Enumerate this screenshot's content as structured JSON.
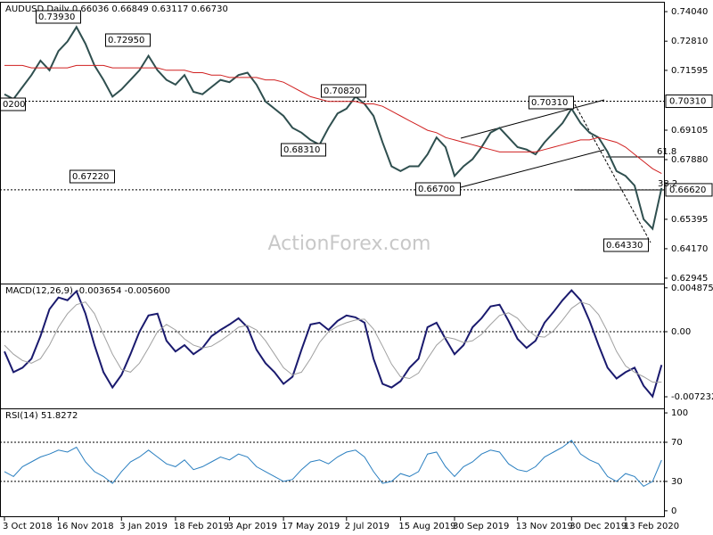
{
  "chart_data": [
    {
      "type": "line",
      "title": "AUDUSD Daily 0.66036 0.66849 0.63117 0.66730",
      "watermark": "ActionForex.com",
      "categories": [
        "3 Oct 2018",
        null,
        null,
        null,
        null,
        null,
        "16 Nov 2018",
        null,
        null,
        null,
        null,
        null,
        null,
        "3 Jan 2019",
        null,
        null,
        null,
        null,
        null,
        "18 Feb 2019",
        null,
        null,
        null,
        null,
        null,
        "3 Apr 2019",
        null,
        null,
        null,
        null,
        null,
        "17 May 2019",
        null,
        null,
        null,
        null,
        null,
        null,
        "2 Jul 2019",
        null,
        null,
        null,
        null,
        null,
        "15 Aug 2019",
        null,
        null,
        null,
        null,
        null,
        "30 Sep 2019",
        null,
        null,
        null,
        null,
        null,
        null,
        "13 Nov 2019",
        null,
        null,
        null,
        null,
        null,
        "30 Dec 2019",
        null,
        null,
        null,
        null,
        null,
        "13 Feb 2020",
        null,
        null,
        null,
        null
      ],
      "series": [
        {
          "name": "AUDUSD",
          "color": "#2f4f4f",
          "values": [
            0.706,
            0.704,
            0.709,
            0.714,
            0.72,
            0.716,
            0.724,
            0.728,
            0.734,
            0.727,
            0.718,
            0.712,
            0.705,
            0.708,
            0.712,
            0.716,
            0.722,
            0.716,
            0.712,
            0.71,
            0.714,
            0.707,
            0.706,
            0.709,
            0.712,
            0.711,
            0.714,
            0.715,
            0.71,
            0.703,
            0.7,
            0.697,
            0.692,
            0.69,
            0.687,
            0.685,
            0.692,
            0.698,
            0.7,
            0.705,
            0.702,
            0.697,
            0.686,
            0.676,
            0.674,
            0.676,
            0.676,
            0.681,
            0.688,
            0.684,
            0.672,
            0.676,
            0.679,
            0.684,
            0.69,
            0.692,
            0.688,
            0.684,
            0.683,
            0.681,
            0.686,
            0.69,
            0.694,
            0.7,
            0.694,
            0.69,
            0.688,
            0.682,
            0.674,
            0.672,
            0.668,
            0.654,
            0.65,
            0.667
          ]
        },
        {
          "name": "MA",
          "color": "#d02020",
          "values": [
            0.718,
            0.718,
            0.718,
            0.717,
            0.717,
            0.717,
            0.717,
            0.717,
            0.718,
            0.718,
            0.718,
            0.718,
            0.717,
            0.717,
            0.717,
            0.717,
            0.717,
            0.717,
            0.716,
            0.716,
            0.716,
            0.715,
            0.715,
            0.714,
            0.714,
            0.713,
            0.713,
            0.713,
            0.713,
            0.712,
            0.712,
            0.711,
            0.709,
            0.707,
            0.705,
            0.704,
            0.703,
            0.703,
            0.703,
            0.703,
            0.702,
            0.702,
            0.701,
            0.699,
            0.697,
            0.695,
            0.693,
            0.691,
            0.69,
            0.688,
            0.687,
            0.686,
            0.685,
            0.684,
            0.683,
            0.682,
            0.682,
            0.682,
            0.682,
            0.682,
            0.683,
            0.684,
            0.685,
            0.686,
            0.687,
            0.687,
            0.688,
            0.687,
            0.686,
            0.684,
            0.681,
            0.678,
            0.675,
            0.673
          ]
        }
      ],
      "ylim": [
        0.6272,
        0.7445
      ],
      "yticks": [
        {
          "value": 0.7404,
          "label": "0.74040"
        },
        {
          "value": 0.7281,
          "label": "0.72810"
        },
        {
          "value": 0.71595,
          "label": "0.71595"
        },
        {
          "value": 0.69105,
          "label": "0.69105"
        },
        {
          "value": 0.6788,
          "label": "0.67880"
        },
        {
          "value": 0.65395,
          "label": "0.65395"
        },
        {
          "value": 0.6417,
          "label": "0.64170"
        },
        {
          "value": 0.62945,
          "label": "0.62945"
        }
      ],
      "levels": [
        {
          "value": 0.7031,
          "label": "0.70310"
        },
        {
          "value": 0.6662,
          "label": "0.66620"
        }
      ],
      "annotations": [
        "0.73930",
        "0.72950",
        "0.67220",
        "0.68310",
        "0.70820",
        "0.66700",
        "0.70310",
        "0.64330",
        "0200",
        "61.8",
        "38.2"
      ]
    },
    {
      "type": "line",
      "title": "MACD(12,26,9) -0.003654 -0.005600",
      "series": [
        {
          "name": "MACD",
          "color": "#1a1a6e",
          "values": [
            -0.0022,
            -0.0045,
            -0.004,
            -0.003,
            -0.0005,
            0.0025,
            0.0038,
            0.0035,
            0.0045,
            0.002,
            -0.0015,
            -0.0045,
            -0.0062,
            -0.0048,
            -0.0025,
            0.0,
            0.0018,
            0.002,
            -0.001,
            -0.0022,
            -0.0015,
            -0.0025,
            -0.0018,
            -0.0005,
            0.0002,
            0.0008,
            0.0015,
            0.0005,
            -0.002,
            -0.0035,
            -0.0045,
            -0.0058,
            -0.005,
            -0.002,
            0.0008,
            0.001,
            0.0002,
            0.0012,
            0.0018,
            0.0016,
            0.001,
            -0.003,
            -0.0058,
            -0.0062,
            -0.0055,
            -0.004,
            -0.003,
            0.0005,
            0.001,
            -0.0008,
            -0.0025,
            -0.0015,
            0.0005,
            0.0015,
            0.0028,
            0.003,
            0.0012,
            -0.0008,
            -0.0018,
            -0.001,
            0.001,
            0.0022,
            0.0035,
            0.0046,
            0.0035,
            0.0012,
            -0.0015,
            -0.004,
            -0.0052,
            -0.0045,
            -0.004,
            -0.006,
            -0.0072,
            -0.0037
          ]
        },
        {
          "name": "Signal",
          "color": "#a0a0a0",
          "values": [
            -0.0015,
            -0.0025,
            -0.0032,
            -0.0035,
            -0.003,
            -0.0015,
            0.0005,
            0.002,
            0.003,
            0.0033,
            0.002,
            -0.0003,
            -0.0025,
            -0.0042,
            -0.0045,
            -0.0035,
            -0.0018,
            0.0,
            0.0008,
            0.0002,
            -0.0008,
            -0.0015,
            -0.0018,
            -0.0016,
            -0.001,
            -0.0003,
            0.0005,
            0.0007,
            0.0002,
            -0.001,
            -0.0025,
            -0.004,
            -0.0048,
            -0.0045,
            -0.003,
            -0.0012,
            0.0,
            0.0006,
            0.001,
            0.0013,
            0.0014,
            0.0003,
            -0.0016,
            -0.0036,
            -0.005,
            -0.0052,
            -0.0046,
            -0.003,
            -0.0015,
            -0.0006,
            -0.0008,
            -0.0012,
            -0.001,
            -0.0003,
            0.0008,
            0.0018,
            0.0021,
            0.0015,
            0.0003,
            -0.0005,
            -0.0006,
            0.0001,
            0.0013,
            0.0026,
            0.0033,
            0.003,
            0.0019,
            0.0,
            -0.0022,
            -0.0038,
            -0.0045,
            -0.005,
            -0.0056,
            -0.0056
          ]
        }
      ],
      "ylim": [
        -0.00852,
        0.00535
      ],
      "yticks": [
        0.004875,
        {
          "value": 0,
          "label": "0.00"
        },
        -0.007232
      ],
      "levels": [
        0
      ]
    },
    {
      "type": "line",
      "title": "RSI(14) 51.8272",
      "series": [
        {
          "name": "RSI",
          "color": "#2a7fc0",
          "values": [
            40,
            35,
            45,
            50,
            55,
            58,
            62,
            60,
            65,
            50,
            40,
            35,
            28,
            40,
            50,
            55,
            62,
            55,
            48,
            45,
            52,
            42,
            45,
            50,
            55,
            52,
            58,
            55,
            45,
            40,
            35,
            30,
            32,
            42,
            50,
            52,
            48,
            55,
            60,
            62,
            55,
            40,
            28,
            30,
            38,
            35,
            40,
            58,
            60,
            45,
            35,
            45,
            50,
            58,
            62,
            60,
            48,
            42,
            40,
            45,
            55,
            60,
            65,
            72,
            58,
            52,
            48,
            35,
            30,
            38,
            35,
            25,
            30,
            51.8272
          ]
        }
      ],
      "ylim": [
        -6.5,
        104.6
      ],
      "yticks": [
        100,
        70,
        30,
        0
      ],
      "levels": [
        70,
        30
      ]
    }
  ]
}
